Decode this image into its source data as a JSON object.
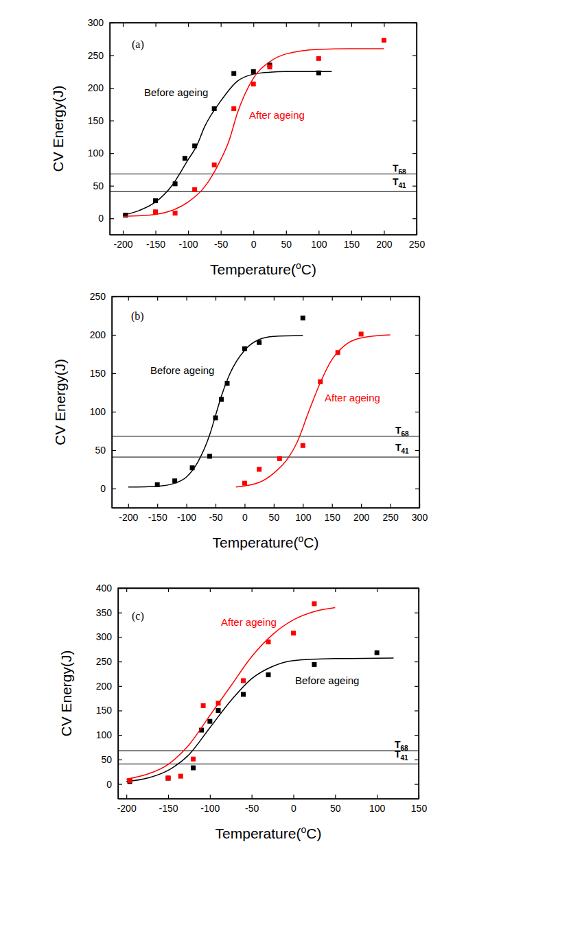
{
  "chart_data": [
    {
      "type": "scatter",
      "title": "(a)",
      "xlabel": {
        "before": "Temperature(",
        "sup": "o",
        "after": "C)"
      },
      "ylabel": "CV Energy(J)",
      "xlim": [
        -220,
        250
      ],
      "ylim": [
        -25,
        300
      ],
      "xticks": [
        -200,
        -150,
        -100,
        -50,
        0,
        50,
        100,
        150,
        200,
        250
      ],
      "yticks": [
        0,
        50,
        100,
        150,
        200,
        250,
        300
      ],
      "hlines": [
        {
          "value": 68,
          "label": "T",
          "subscript": "68"
        },
        {
          "value": 41,
          "label": "T",
          "subscript": "41"
        }
      ],
      "series": [
        {
          "name": "Before ageing",
          "color": "#000000",
          "marker": "square",
          "x": [
            -196,
            -150,
            -120,
            -105,
            -90,
            -60,
            -30,
            0,
            25,
            100
          ],
          "values": [
            5,
            27,
            53,
            92,
            111,
            168,
            222,
            225,
            235,
            223
          ],
          "fit_x": [
            -200,
            -175,
            -150,
            -125,
            -100,
            -87,
            -75,
            -50,
            -25,
            0,
            25,
            50,
            120
          ],
          "fit_values": [
            5,
            12,
            25,
            50,
            90,
            111,
            140,
            180,
            210,
            221,
            224,
            225,
            225
          ]
        },
        {
          "name": "After ageing",
          "color": "#ff0000",
          "marker": "square",
          "x": [
            -150,
            -120,
            -90,
            -60,
            -30,
            0,
            25,
            100,
            200
          ],
          "values": [
            10,
            8,
            44,
            82,
            168,
            206,
            232,
            245,
            273
          ],
          "fit_x": [
            -200,
            -150,
            -125,
            -100,
            -75,
            -50,
            -37,
            -25,
            0,
            25,
            50,
            100,
            150,
            200
          ],
          "fit_values": [
            3,
            6,
            12,
            25,
            48,
            90,
            120,
            160,
            215,
            240,
            252,
            259,
            260,
            260
          ]
        }
      ]
    },
    {
      "type": "scatter",
      "title": "(b)",
      "xlabel": {
        "before": "Temperature(",
        "sup": "o",
        "after": "C)"
      },
      "ylabel": "CV Energy(J)",
      "xlim": [
        -228,
        300
      ],
      "ylim": [
        -25,
        250
      ],
      "xticks": [
        -200,
        -150,
        -100,
        -50,
        0,
        50,
        100,
        150,
        200,
        250,
        300
      ],
      "yticks": [
        0,
        50,
        100,
        150,
        200,
        250
      ],
      "hlines": [
        {
          "value": 68,
          "label": "T",
          "subscript": "68"
        },
        {
          "value": 41,
          "label": "T",
          "subscript": "41"
        }
      ],
      "series": [
        {
          "name": "Before ageing",
          "color": "#000000",
          "marker": "square",
          "x": [
            -150,
            -120,
            -90,
            -60,
            -50,
            -40,
            -30,
            0,
            25,
            100
          ],
          "values": [
            5,
            10,
            27,
            42,
            92,
            116,
            137,
            182,
            190,
            222
          ],
          "fit_x": [
            -200,
            -150,
            -120,
            -100,
            -80,
            -60,
            -50,
            -40,
            -25,
            0,
            25,
            50,
            100
          ],
          "fit_values": [
            2,
            3,
            7,
            15,
            35,
            70,
            95,
            120,
            150,
            180,
            194,
            198,
            199
          ]
        },
        {
          "name": "After ageing",
          "color": "#ff0000",
          "marker": "square",
          "x": [
            0,
            25,
            60,
            100,
            130,
            160,
            200
          ],
          "values": [
            7,
            25,
            39,
            56,
            139,
            177,
            201
          ],
          "fit_x": [
            -15,
            25,
            50,
            75,
            90,
            110,
            130,
            150,
            175,
            200,
            250
          ],
          "fit_values": [
            2,
            8,
            20,
            40,
            60,
            100,
            138,
            168,
            188,
            196,
            200
          ]
        }
      ]
    },
    {
      "type": "scatter",
      "title": "(c)",
      "xlabel": {
        "before": "Temperature(",
        "sup": "o",
        "after": "C)"
      },
      "ylabel": "CV Energy(J)",
      "xlim": [
        -210,
        150
      ],
      "ylim": [
        -30,
        400
      ],
      "xticks": [
        -200,
        -150,
        -100,
        -50,
        0,
        50,
        100,
        150
      ],
      "yticks": [
        0,
        50,
        100,
        150,
        200,
        250,
        300,
        350,
        400
      ],
      "hlines": [
        {
          "value": 68,
          "label": "T",
          "subscript": "68"
        },
        {
          "value": 41,
          "label": "T",
          "subscript": "41"
        }
      ],
      "series": [
        {
          "name": "Before ageing",
          "color": "#000000",
          "marker": "square",
          "x": [
            -196,
            -150,
            -120,
            -110,
            -100,
            -90,
            -60,
            -30,
            25,
            100
          ],
          "values": [
            5,
            12,
            33,
            110,
            128,
            150,
            183,
            223,
            244,
            268
          ],
          "fit_x": [
            -200,
            -175,
            -150,
            -125,
            -100,
            -75,
            -50,
            -25,
            0,
            50,
            120
          ],
          "fit_values": [
            5,
            12,
            28,
            60,
            115,
            170,
            215,
            240,
            252,
            256,
            257
          ]
        },
        {
          "name": "After ageing",
          "color": "#ff0000",
          "marker": "square",
          "x": [
            -196,
            -150,
            -135,
            -120,
            -108,
            -90,
            -60,
            -30,
            0,
            25
          ],
          "values": [
            7,
            12,
            16,
            51,
            160,
            165,
            211,
            290,
            308,
            368
          ],
          "fit_x": [
            -200,
            -175,
            -150,
            -125,
            -100,
            -75,
            -50,
            -25,
            0,
            25,
            50
          ],
          "fit_values": [
            10,
            20,
            40,
            80,
            140,
            200,
            260,
            305,
            335,
            352,
            360
          ]
        }
      ]
    }
  ]
}
